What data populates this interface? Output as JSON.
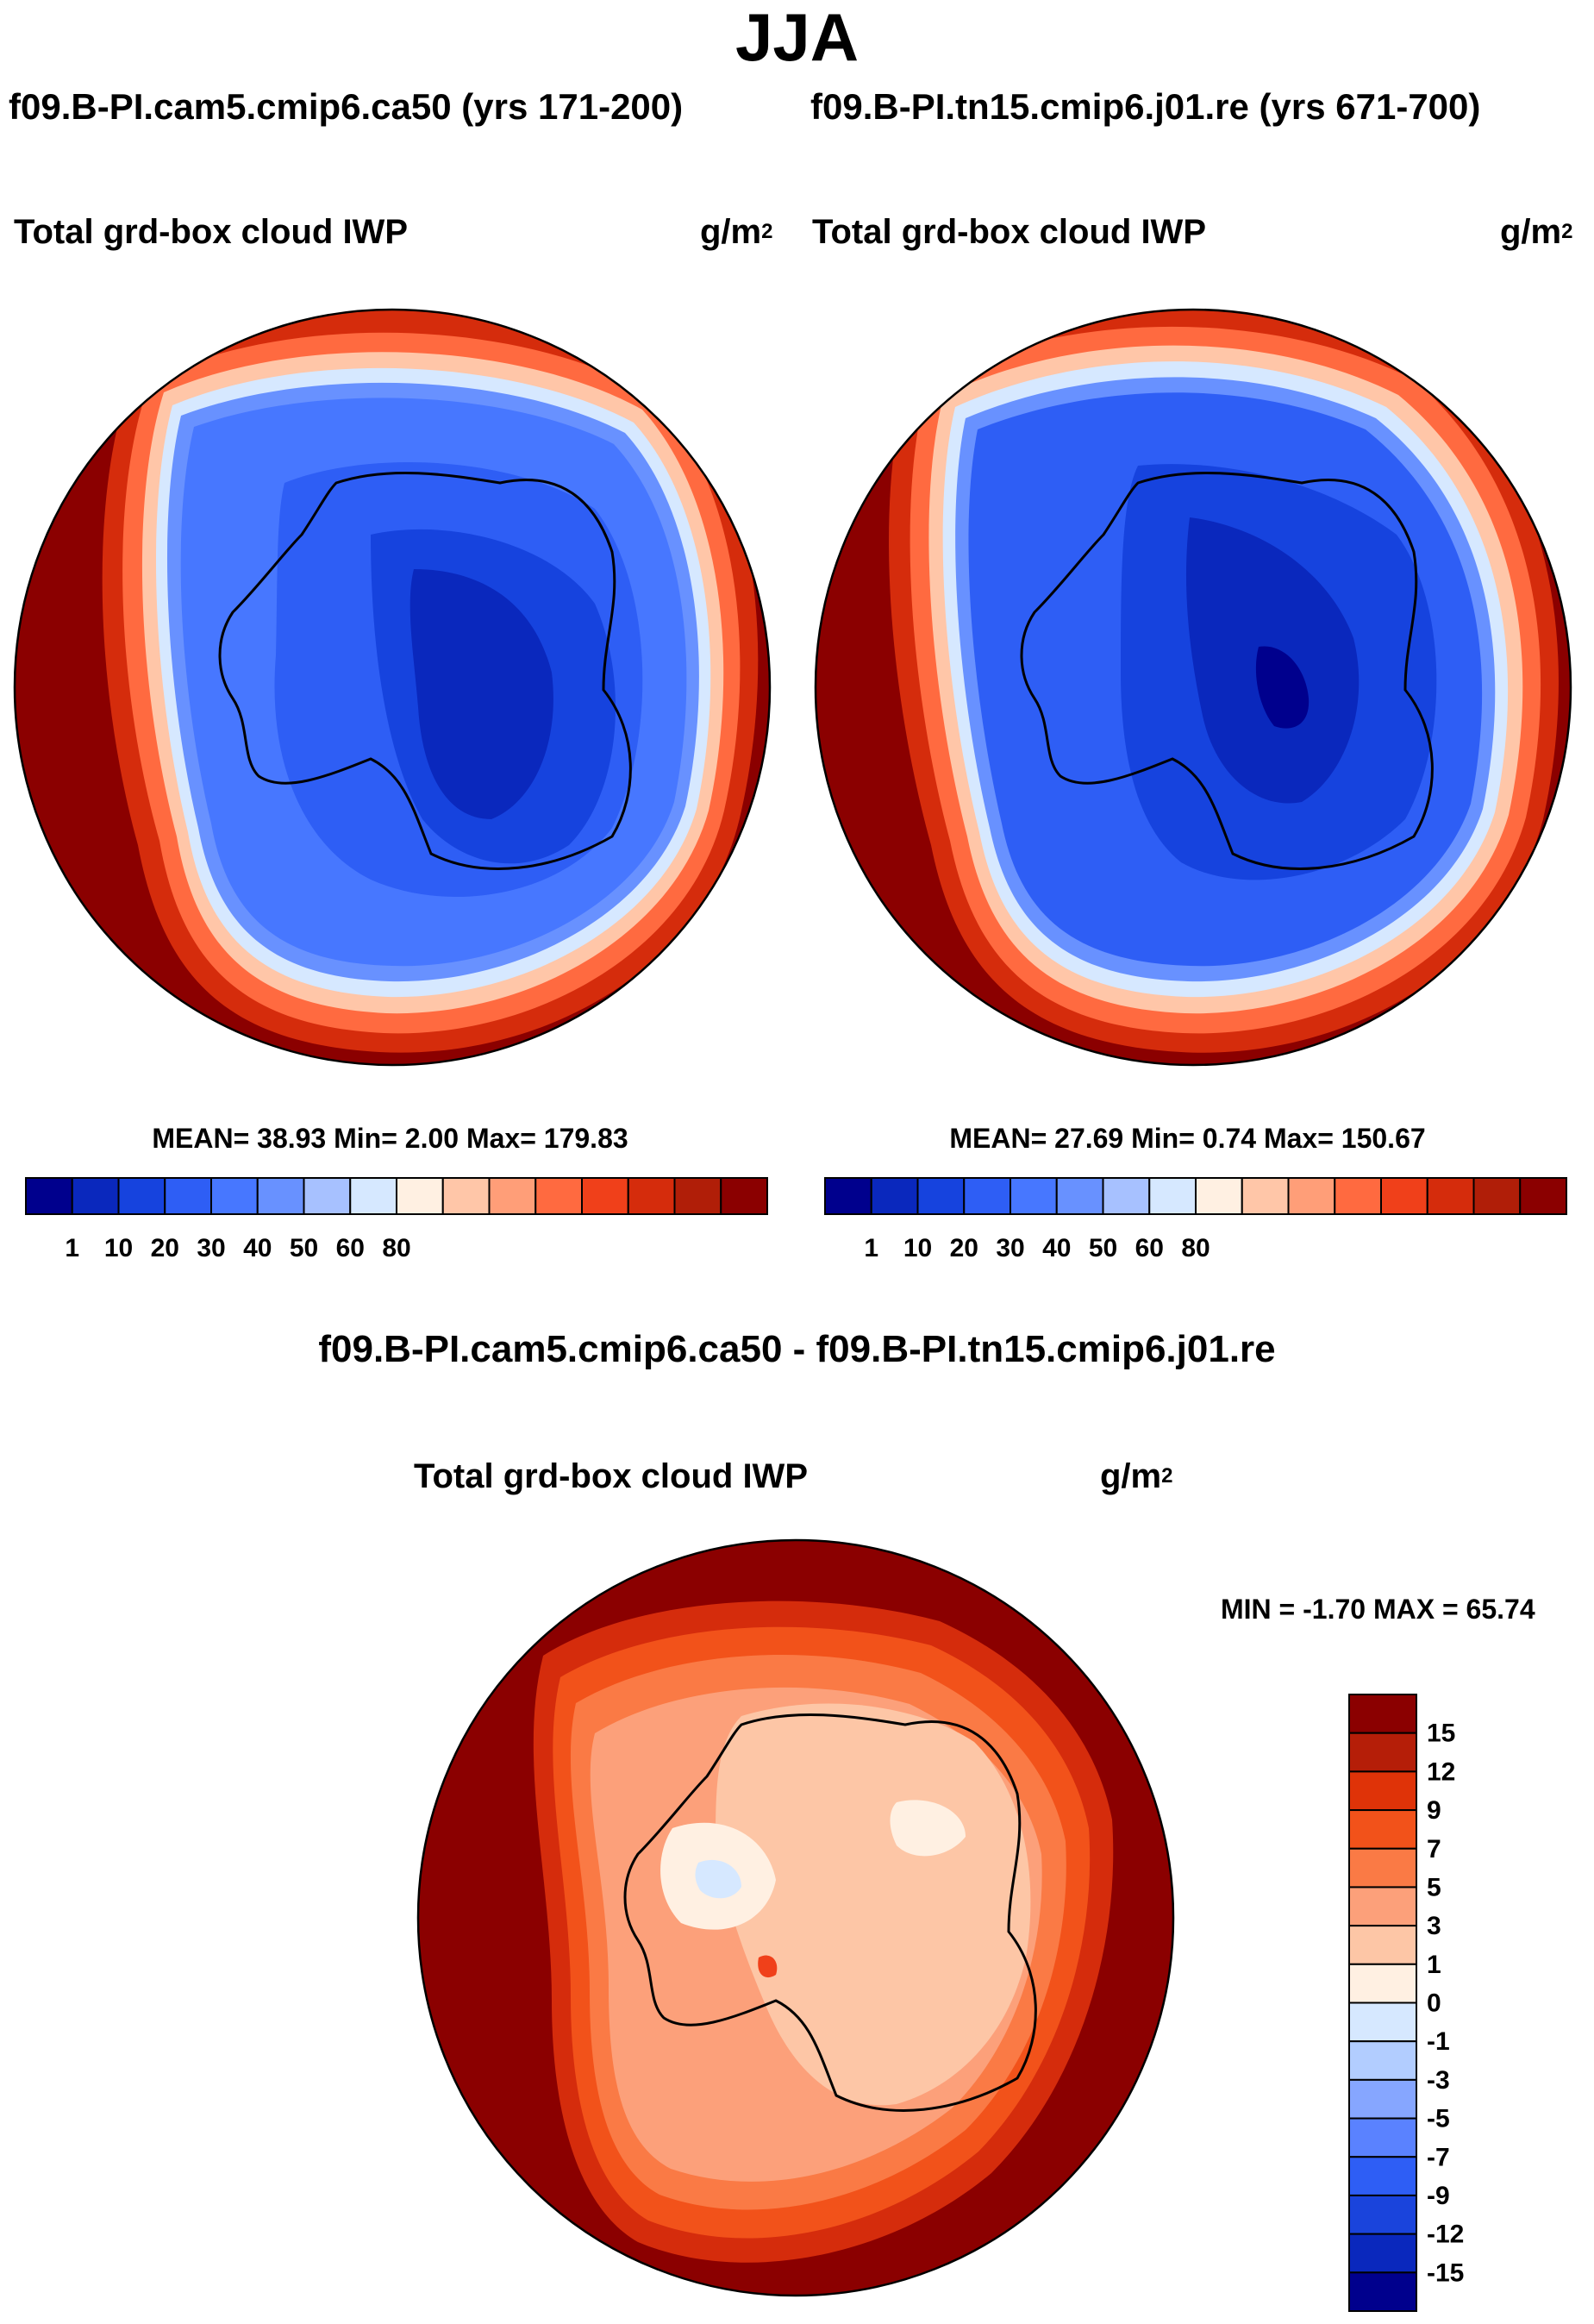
{
  "title": "JJA",
  "cases": [
    "f09.B-PI.cam5.cmip6.ca50 (yrs 171-200)",
    "f09.B-PI.tn15.cmip6.j01.re (yrs 671-700)"
  ],
  "diff_title": "f09.B-PI.cam5.cmip6.ca50 - f09.B-PI.tn15.cmip6.j01.re",
  "panels": [
    {
      "variable": "Total grd-box cloud IWP",
      "units": "g/m",
      "units_sup": "2",
      "stats": "MEAN=  38.93  Min=   2.00  Max= 179.83"
    },
    {
      "variable": "Total grd-box cloud IWP",
      "units": "g/m",
      "units_sup": "2",
      "stats": "MEAN=  27.69  Min=    0.74  Max= 150.67"
    },
    {
      "variable": "Total grd-box cloud IWP",
      "units": "g/m",
      "units_sup": "2",
      "stats": "MIN =  -1.70 MAX =  65.74"
    }
  ],
  "chart_data": [
    {
      "type": "heatmap",
      "subtype": "polar-stereographic contour map (Southern Hemisphere)",
      "title": "Total grd-box cloud IWP",
      "case": "f09.B-PI.cam5.cmip6.ca50 (yrs 171-200)",
      "units": "g/m2",
      "mean": 38.93,
      "min": 2.0,
      "max": 179.83,
      "colorbar": {
        "orientation": "horizontal",
        "tick_labels": [
          "1",
          "10",
          "20",
          "30",
          "40",
          "50",
          "60",
          "80"
        ],
        "colors": [
          "#00008d",
          "#0a28bd",
          "#1643de",
          "#2e5ef5",
          "#4777ff",
          "#6891ff",
          "#a7c1ff",
          "#d6e8ff",
          "#fff0e2",
          "#ffc6a8",
          "#ff9e78",
          "#ff6a40",
          "#f0401a",
          "#d52c0c",
          "#b01e08",
          "#8b0000"
        ]
      }
    },
    {
      "type": "heatmap",
      "subtype": "polar-stereographic contour map (Southern Hemisphere)",
      "title": "Total grd-box cloud IWP",
      "case": "f09.B-PI.tn15.cmip6.j01.re (yrs 671-700)",
      "units": "g/m2",
      "mean": 27.69,
      "min": 0.74,
      "max": 150.67,
      "colorbar": {
        "orientation": "horizontal",
        "tick_labels": [
          "1",
          "10",
          "20",
          "30",
          "40",
          "50",
          "60",
          "80"
        ],
        "colors": [
          "#00008d",
          "#0a28bd",
          "#1643de",
          "#2e5ef5",
          "#4777ff",
          "#6891ff",
          "#a7c1ff",
          "#d6e8ff",
          "#fff0e2",
          "#ffc6a8",
          "#ff9e78",
          "#ff6a40",
          "#f0401a",
          "#d52c0c",
          "#b01e08",
          "#8b0000"
        ]
      }
    },
    {
      "type": "heatmap",
      "subtype": "polar-stereographic difference map",
      "title": "Total grd-box cloud IWP",
      "case": "f09.B-PI.cam5.cmip6.ca50 - f09.B-PI.tn15.cmip6.j01.re",
      "units": "g/m2",
      "min": -1.7,
      "max": 65.74,
      "colorbar": {
        "orientation": "vertical",
        "tick_labels": [
          "15",
          "12",
          "9",
          "7",
          "5",
          "3",
          "1",
          "0",
          "-1",
          "-3",
          "-5",
          "-7",
          "-9",
          "-12",
          "-15"
        ],
        "colors": [
          "#8b0000",
          "#b51e08",
          "#df3308",
          "#f2521a",
          "#fa7a45",
          "#fca07a",
          "#fdc6a6",
          "#fff0e2",
          "#d6e8ff",
          "#b2cdff",
          "#86a6ff",
          "#5a82ff",
          "#2e5ef5",
          "#1a44dc",
          "#0a28bd",
          "#00008d"
        ]
      }
    }
  ]
}
